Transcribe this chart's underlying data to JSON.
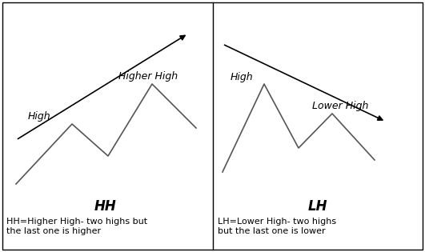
{
  "background_color": "#ffffff",
  "border_color": "#000000",
  "left_label": "HH",
  "left_caption": "HH=Higher High- two highs but\nthe last one is higher",
  "left_high1_label": "High",
  "left_high2_label": "Higher High",
  "right_label": "LH",
  "right_caption": "LH=Lower High- two highs\nbut the last one is lower",
  "right_high1_label": "High",
  "right_high2_label": "Lower High",
  "text_color": "#000000",
  "line_color": "#555555",
  "arrow_color": "#000000"
}
